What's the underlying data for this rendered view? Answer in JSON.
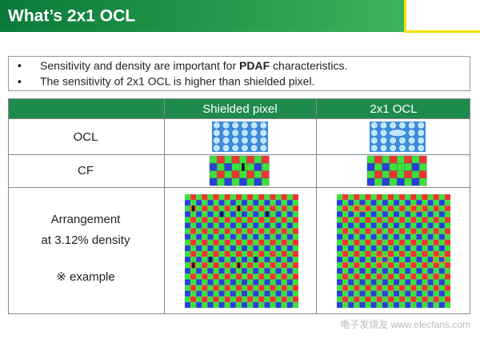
{
  "header": {
    "title": "What’s 2x1 OCL"
  },
  "bullets": [
    {
      "marker": "•",
      "before": "Sensitivity and density are important for ",
      "bold": "PDAF",
      "after": " characteristics."
    },
    {
      "marker": "•",
      "text": "The sensitivity of 2x1 OCL is higher than shielded pixel."
    }
  ],
  "table": {
    "columns": [
      "Shielded pixel",
      "2x1 OCL"
    ],
    "rows": [
      {
        "label": "OCL"
      },
      {
        "label": "CF"
      },
      {
        "label_lines": [
          "Arrangement",
          "at 3.12% density",
          "※ example"
        ]
      }
    ]
  },
  "watermark": "电子发烧友 www.elecfans.com"
}
